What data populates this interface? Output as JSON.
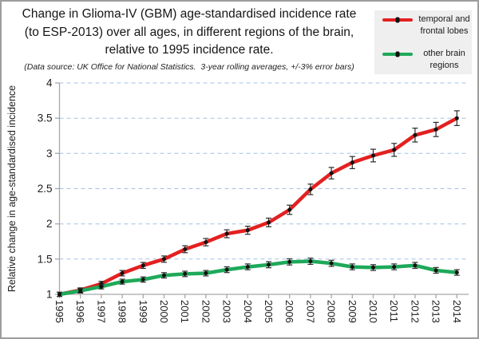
{
  "header": {
    "title_line1": "Change in Glioma-IV (GBM) age-standardised incidence rate",
    "title_line2": "(to ESP-2013) over all ages, in different regions of the brain,",
    "title_line3": "relative to 1995 incidence rate.",
    "subtitle": "(Data source: UK Office for National Statistics.  3-year rolling averages, +/-3% error bars)"
  },
  "legend": {
    "items": [
      {
        "line1": "temporal and",
        "line2": "frontal lobes",
        "color": "#e32020"
      },
      {
        "line1": "other brain",
        "line2": "regions",
        "color": "#1ea95a"
      }
    ]
  },
  "chart_data": {
    "type": "line",
    "x": [
      "1995",
      "1996",
      "1997",
      "1998",
      "1999",
      "2000",
      "2001",
      "2002",
      "2003",
      "2004",
      "2005",
      "2006",
      "2007",
      "2008",
      "2009",
      "2010",
      "2011",
      "2012",
      "2013",
      "2014"
    ],
    "series": [
      {
        "name": "temporal and frontal lobes",
        "color": "#e32020",
        "values": [
          1.0,
          1.06,
          1.15,
          1.3,
          1.41,
          1.5,
          1.64,
          1.74,
          1.86,
          1.91,
          2.02,
          2.2,
          2.49,
          2.72,
          2.87,
          2.97,
          3.05,
          3.26,
          3.34,
          3.5
        ]
      },
      {
        "name": "other brain regions",
        "color": "#1ea95a",
        "values": [
          1.0,
          1.05,
          1.11,
          1.18,
          1.21,
          1.27,
          1.29,
          1.3,
          1.35,
          1.39,
          1.42,
          1.46,
          1.47,
          1.44,
          1.39,
          1.38,
          1.39,
          1.41,
          1.34,
          1.31
        ]
      }
    ],
    "ylabel": "Relative change in age-standardised incidence",
    "xlabel": "",
    "ylim": [
      1,
      4
    ],
    "ytick_step": 0.5,
    "yticks": [
      "1",
      "1.5",
      "2",
      "2.5",
      "3",
      "3.5",
      "4"
    ],
    "error_bars_pct": 3,
    "grid": "horizontal-dashed",
    "grid_color": "#a4c2e2",
    "axis_color": "#a6a6a6",
    "marker_color": "#111111",
    "error_bar_color": "#2a2a2a",
    "legend_position": "top-right"
  }
}
